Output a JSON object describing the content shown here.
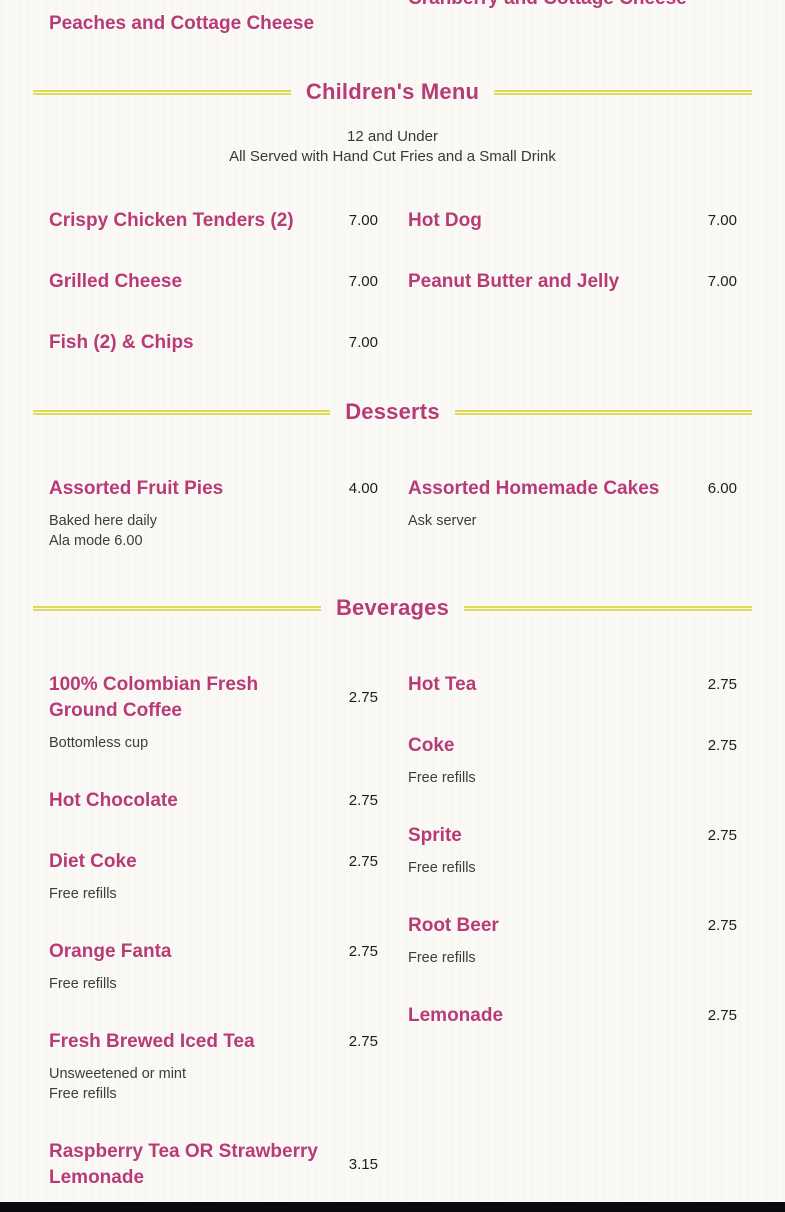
{
  "theme": {
    "background": "#fbf9f6",
    "accent_pink": "#b83b76",
    "divider_yellow": "#dfdb58",
    "price_color": "#1d1d1d",
    "description_color": "#3d3d3d",
    "footer_color": "#0a0a0e"
  },
  "clipped_previous_section": {
    "left_item": "Peaches and Cottage Cheese",
    "right_item": "Cranberry and Cottage Cheese"
  },
  "sections": [
    {
      "title": "Children's Menu",
      "subtitle_lines": [
        "12 and Under",
        "All Served with Hand Cut Fries and a Small Drink"
      ],
      "columns": {
        "left": [
          {
            "name": "Crispy Chicken Tenders (2)",
            "price": "7.00"
          },
          {
            "name": "Grilled Cheese",
            "price": "7.00"
          },
          {
            "name": "Fish (2) & Chips",
            "price": "7.00"
          }
        ],
        "right": [
          {
            "name": "Hot Dog",
            "price": "7.00"
          },
          {
            "name": "Peanut Butter and Jelly",
            "price": "7.00"
          }
        ]
      }
    },
    {
      "title": "Desserts",
      "columns": {
        "left": [
          {
            "name": "Assorted Fruit Pies",
            "price": "4.00",
            "desc": [
              "Baked here daily",
              "Ala mode 6.00"
            ]
          }
        ],
        "right": [
          {
            "name": "Assorted Homemade Cakes",
            "price": "6.00",
            "desc": [
              "Ask server"
            ]
          }
        ]
      }
    },
    {
      "title": "Beverages",
      "columns": {
        "left": [
          {
            "name": "100% Colombian Fresh Ground Coffee",
            "price": "2.75",
            "desc": [
              "Bottomless cup"
            ]
          },
          {
            "name": "Hot Chocolate",
            "price": "2.75"
          },
          {
            "name": "Diet Coke",
            "price": "2.75",
            "desc": [
              "Free refills"
            ]
          },
          {
            "name": "Orange Fanta",
            "price": "2.75",
            "desc": [
              "Free refills"
            ]
          },
          {
            "name": "Fresh Brewed Iced Tea",
            "price": "2.75",
            "desc": [
              "Unsweetened or mint",
              "Free refills"
            ]
          },
          {
            "name": "Raspberry Tea OR Strawberry Lemonade",
            "price": "3.15"
          }
        ],
        "right": [
          {
            "name": "Hot Tea",
            "price": "2.75"
          },
          {
            "name": "Coke",
            "price": "2.75",
            "desc": [
              "Free refills"
            ]
          },
          {
            "name": "Sprite",
            "price": "2.75",
            "desc": [
              "Free refills"
            ]
          },
          {
            "name": "Root Beer",
            "price": "2.75",
            "desc": [
              "Free refills"
            ]
          },
          {
            "name": "Lemonade",
            "price": "2.75"
          }
        ]
      }
    }
  ]
}
